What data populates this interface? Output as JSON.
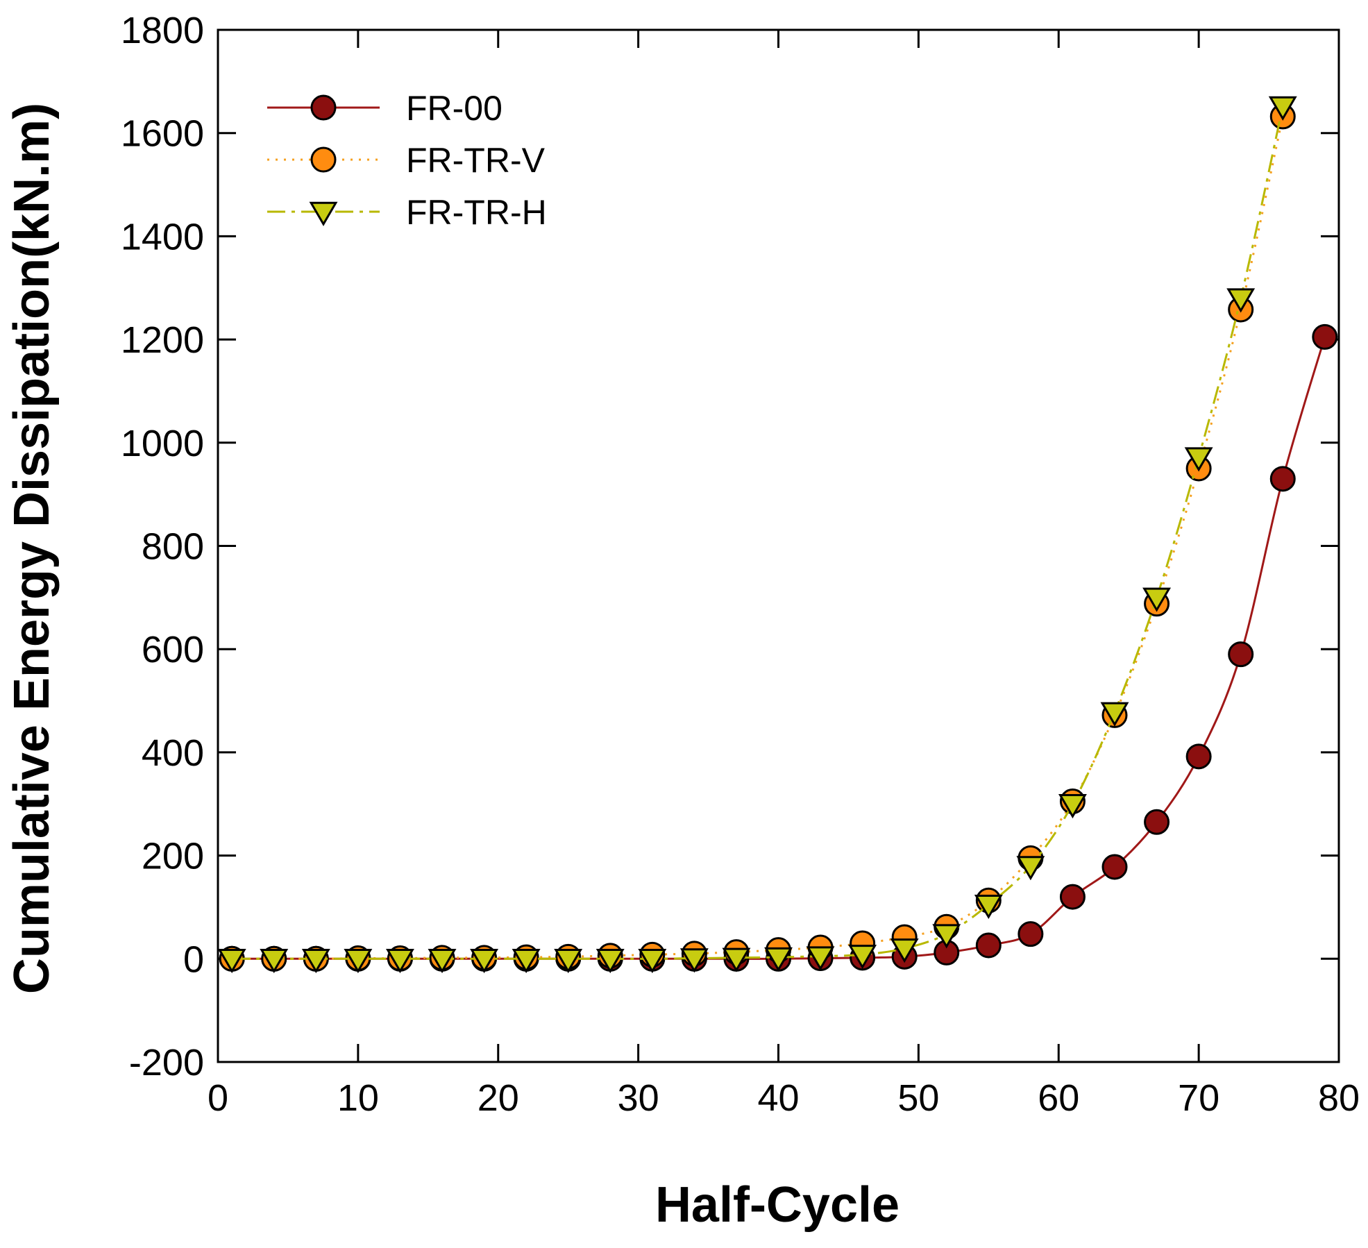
{
  "chart_data": {
    "type": "line",
    "title": "",
    "xlabel": "Half-Cycle",
    "ylabel": "Cumulative Energy Dissipation(kN.m)",
    "xlim": [
      0,
      80
    ],
    "ylim": [
      -200,
      1800
    ],
    "xticks": [
      0,
      10,
      20,
      30,
      40,
      50,
      60,
      70,
      80
    ],
    "yticks": [
      -200,
      0,
      200,
      400,
      600,
      800,
      1000,
      1200,
      1400,
      1600,
      1800
    ],
    "xtick_labels": [
      "0",
      "10",
      "20",
      "30",
      "40",
      "50",
      "60",
      "70",
      "80"
    ],
    "ytick_labels": [
      "-200",
      "0",
      "200",
      "400",
      "600",
      "800",
      "1000",
      "1200",
      "1400",
      "1600",
      "1800"
    ],
    "grid": false,
    "legend_position": "top-left",
    "series": [
      {
        "name": "FR-00",
        "line_style": "solid",
        "marker": "circle",
        "line_color": "#a01818",
        "marker_color": "#8b0f0f",
        "x": [
          1,
          4,
          7,
          10,
          13,
          16,
          19,
          22,
          25,
          28,
          31,
          34,
          37,
          40,
          43,
          46,
          49,
          52,
          55,
          58,
          61,
          64,
          67,
          70,
          73,
          76,
          79
        ],
        "y": [
          0,
          0,
          0,
          0,
          0,
          0,
          0,
          0,
          0,
          0,
          0,
          0,
          0,
          0,
          1,
          2,
          4,
          12,
          26,
          48,
          120,
          178,
          265,
          392,
          590,
          930,
          1205
        ]
      },
      {
        "name": "FR-TR-V",
        "line_style": "dotted",
        "marker": "circle",
        "line_color": "#f5a020",
        "marker_color": "#ff8c10",
        "x": [
          1,
          4,
          7,
          10,
          13,
          16,
          19,
          22,
          25,
          28,
          31,
          34,
          37,
          40,
          43,
          46,
          49,
          52,
          55,
          58,
          61,
          64,
          67,
          70,
          73,
          76
        ],
        "y": [
          0,
          0,
          0,
          1,
          1,
          2,
          2,
          3,
          4,
          6,
          8,
          10,
          13,
          17,
          22,
          30,
          42,
          62,
          113,
          195,
          305,
          472,
          688,
          950,
          1258,
          1632
        ]
      },
      {
        "name": "FR-TR-H",
        "line_style": "dash-dot",
        "marker": "triangle-down",
        "line_color": "#b8b800",
        "marker_color": "#c8cc10",
        "x": [
          1,
          4,
          7,
          10,
          13,
          16,
          19,
          22,
          25,
          28,
          31,
          34,
          37,
          40,
          43,
          46,
          49,
          52,
          55,
          58,
          61,
          64,
          67,
          70,
          73,
          76
        ],
        "y": [
          0,
          0,
          0,
          0,
          0,
          0,
          0,
          0,
          0,
          0,
          0,
          1,
          2,
          3,
          5,
          8,
          20,
          48,
          105,
          180,
          300,
          478,
          700,
          972,
          1280,
          1652
        ]
      }
    ]
  }
}
